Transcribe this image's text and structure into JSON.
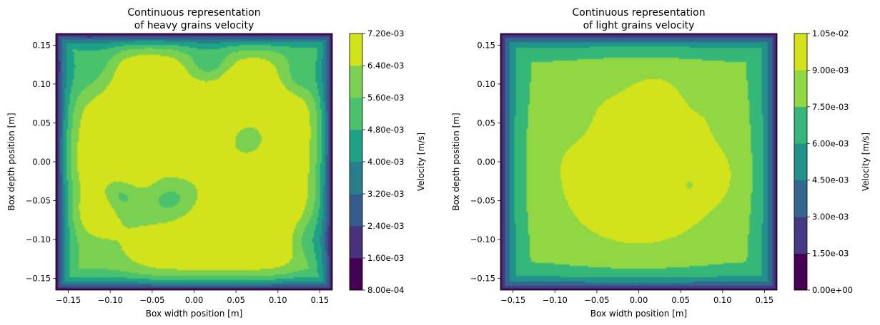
{
  "chart_data": [
    {
      "type": "contour",
      "title": "Continuous representation\nof heavy grains velocity",
      "xlabel": "Box width position [m]",
      "ylabel": "Box depth position [m]",
      "colorbar_label": "Velocity [m/s]",
      "xlim": [
        -0.165,
        0.165
      ],
      "ylim": [
        -0.165,
        0.165
      ],
      "xticks": [
        -0.15,
        -0.1,
        -0.05,
        0.0,
        0.05,
        0.1,
        0.15
      ],
      "xtick_labels": [
        "−0.15",
        "−0.10",
        "−0.05",
        "0.00",
        "0.05",
        "0.10",
        "0.15"
      ],
      "yticks": [
        0.15,
        0.1,
        0.05,
        0.0,
        -0.05,
        -0.1,
        -0.15
      ],
      "ytick_labels": [
        "0.15",
        "0.10",
        "0.05",
        "0.00",
        "−0.05",
        "−0.10",
        "−0.15"
      ],
      "levels": [
        0.0008,
        0.0016,
        0.0024,
        0.0032,
        0.004,
        0.0048,
        0.0056,
        0.0064,
        0.0072
      ],
      "level_labels": [
        "8.00e-04",
        "1.60e-03",
        "2.40e-03",
        "3.20e-03",
        "4.00e-03",
        "4.80e-03",
        "5.60e-03",
        "6.40e-03",
        "7.20e-03"
      ],
      "colors": [
        "#440154",
        "#46327e",
        "#365c8d",
        "#277f8e",
        "#1fa187",
        "#4ac16d",
        "#7ad151",
        "#d2e21b"
      ]
    },
    {
      "type": "contour",
      "title": "Continuous representation\nof light grains velocity",
      "xlabel": "Box width position [m]",
      "ylabel": "Box depth position [m]",
      "colorbar_label": "Velocity [m/s]",
      "xlim": [
        -0.165,
        0.165
      ],
      "ylim": [
        -0.165,
        0.165
      ],
      "xticks": [
        -0.15,
        -0.1,
        -0.05,
        0.0,
        0.05,
        0.1,
        0.15
      ],
      "xtick_labels": [
        "−0.15",
        "−0.10",
        "−0.05",
        "0.00",
        "0.05",
        "0.10",
        "0.15"
      ],
      "yticks": [
        0.15,
        0.1,
        0.05,
        0.0,
        -0.05,
        -0.1,
        -0.15
      ],
      "ytick_labels": [
        "0.15",
        "0.10",
        "0.05",
        "0.00",
        "−0.05",
        "−0.10",
        "−0.15"
      ],
      "levels": [
        0.0,
        0.0015,
        0.003,
        0.0045,
        0.006,
        0.0075,
        0.009,
        0.0105
      ],
      "level_labels": [
        "0.00e+00",
        "1.50e-03",
        "3.00e-03",
        "4.50e-03",
        "6.00e-03",
        "7.50e-03",
        "9.00e-03",
        "1.05e-02"
      ],
      "colors": [
        "#440154",
        "#443983",
        "#31688e",
        "#21918c",
        "#35b779",
        "#90d743",
        "#d2e21b"
      ]
    }
  ]
}
